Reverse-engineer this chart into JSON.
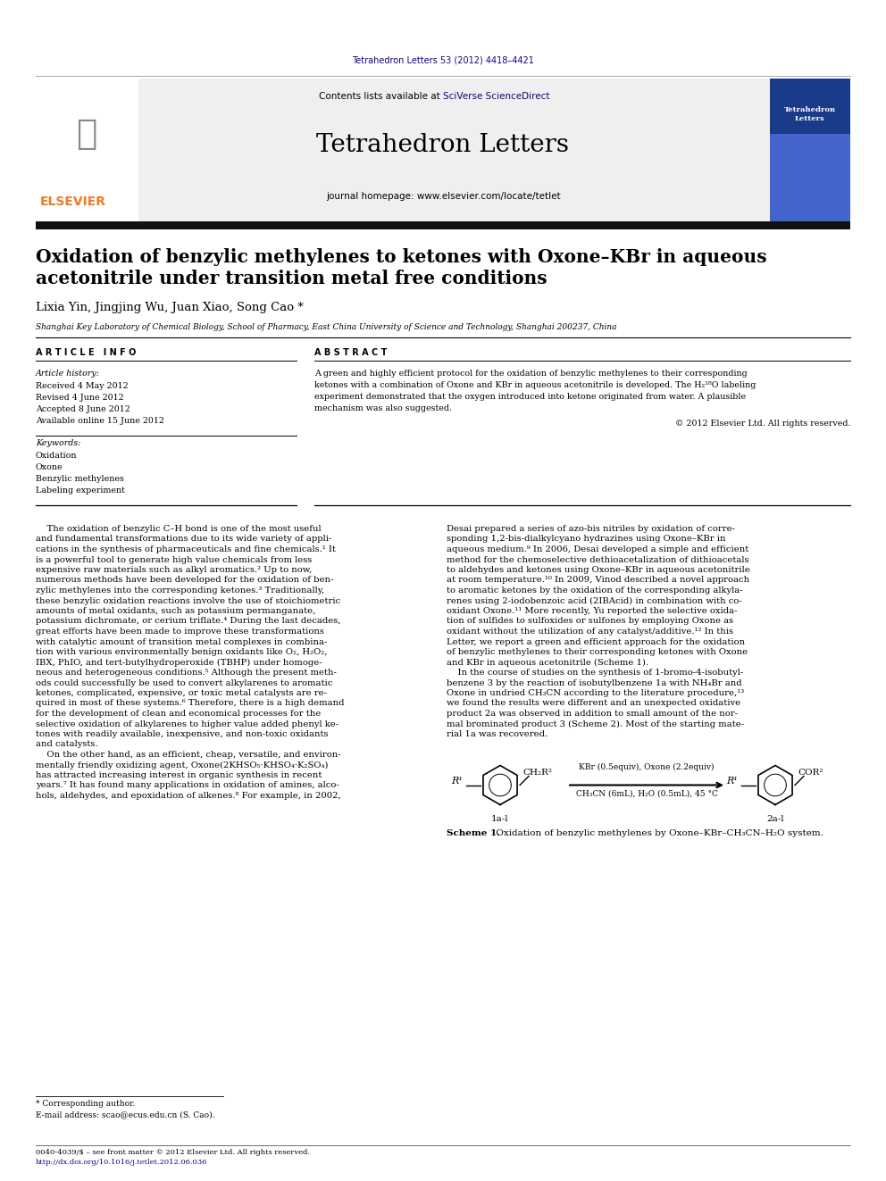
{
  "page_width": 9.92,
  "page_height": 13.23,
  "dpi": 100,
  "background_color": "#ffffff",
  "top_citation": "Tetrahedron Letters 53 (2012) 4418–4421",
  "top_citation_color": "#1a0080",
  "journal_name": "Tetrahedron Letters",
  "contents_text": "Contents lists available at ",
  "sciverse_text": "SciVerse ScienceDirect",
  "journal_homepage": "journal homepage: www.elsevier.com/locate/tetlet",
  "article_title_line1": "Oxidation of benzylic methylenes to ketones with Oxone–KBr in aqueous",
  "article_title_line2": "acetonitrile under transition metal free conditions",
  "authors": "Lixia Yin, Jingjing Wu, Juan Xiao, Song Cao",
  "affiliation": "Shanghai Key Laboratory of Chemical Biology, School of Pharmacy, East China University of Science and Technology, Shanghai 200237, China",
  "article_info_header": "A R T I C L E   I N F O",
  "abstract_header": "A B S T R A C T",
  "article_history_label": "Article history:",
  "received": "Received 4 May 2012",
  "revised": "Revised 4 June 2012",
  "accepted": "Accepted 8 June 2012",
  "available": "Available online 15 June 2012",
  "keywords_label": "Keywords:",
  "keywords": [
    "Oxidation",
    "Oxone",
    "Benzylic methylenes",
    "Labeling experiment"
  ],
  "abstract_lines": [
    "A green and highly efficient protocol for the oxidation of benzylic methylenes to their corresponding",
    "ketones with a combination of Oxone and KBr in aqueous acetonitrile is developed. The H₂¹⁸O labeling",
    "experiment demonstrated that the oxygen introduced into ketone originated from water. A plausible",
    "mechanism was also suggested."
  ],
  "copyright": "© 2012 Elsevier Ltd. All rights reserved.",
  "body_col1_lines": [
    "    The oxidation of benzylic C–H bond is one of the most useful",
    "and fundamental transformations due to its wide variety of appli-",
    "cations in the synthesis of pharmaceuticals and fine chemicals.¹ It",
    "is a powerful tool to generate high value chemicals from less",
    "expensive raw materials such as alkyl aromatics.² Up to now,",
    "numerous methods have been developed for the oxidation of ben-",
    "zylic methylenes into the corresponding ketones.³ Traditionally,",
    "these benzylic oxidation reactions involve the use of stoichiometric",
    "amounts of metal oxidants, such as potassium permanganate,",
    "potassium dichromate, or cerium triflate.⁴ During the last decades,",
    "great efforts have been made to improve these transformations",
    "with catalytic amount of transition metal complexes in combina-",
    "tion with various environmentally benign oxidants like O₂, H₂O₂,",
    "IBX, PhIO, and tert-butylhydroperoxide (TBHP) under homoge-",
    "neous and heterogeneous conditions.⁵ Although the present meth-",
    "ods could successfully be used to convert alkylarenes to aromatic",
    "ketones, complicated, expensive, or toxic metal catalysts are re-",
    "quired in most of these systems.⁶ Therefore, there is a high demand",
    "for the development of clean and economical processes for the",
    "selective oxidation of alkylarenes to higher value added phenyl ke-",
    "tones with readily available, inexpensive, and non-toxic oxidants",
    "and catalysts.",
    "    On the other hand, as an efficient, cheap, versatile, and environ-",
    "mentally friendly oxidizing agent, Oxone(2KHSO₅·KHSO₄·K₂SO₄)",
    "has attracted increasing interest in organic synthesis in recent",
    "years.⁷ It has found many applications in oxidation of amines, alco-",
    "hols, aldehydes, and epoxidation of alkenes.⁸ For example, in 2002,"
  ],
  "body_col2_lines": [
    "Desai prepared a series of azo-bis nitriles by oxidation of corre-",
    "sponding 1,2-bis-dialkylcyano hydrazines using Oxone–KBr in",
    "aqueous medium.⁹ In 2006, Desai developed a simple and efficient",
    "method for the chemoselective dethioacetalization of dithioacetals",
    "to aldehydes and ketones using Oxone–KBr in aqueous acetonitrile",
    "at room temperature.¹⁰ In 2009, Vinod described a novel approach",
    "to aromatic ketones by the oxidation of the corresponding alkyla-",
    "renes using 2-iodobenzoic acid (2IBAcid) in combination with co-",
    "oxidant Oxone.¹¹ More recently, Yu reported the selective oxida-",
    "tion of sulfides to sulfoxides or sulfones by employing Oxone as",
    "oxidant without the utilization of any catalyst/additive.¹² In this",
    "Letter, we report a green and efficient approach for the oxidation",
    "of benzylic methylenes to their corresponding ketones with Oxone",
    "and KBr in aqueous acetonitrile (Scheme 1).",
    "    In the course of studies on the synthesis of 1-bromo-4-isobutyl-",
    "benzene 3 by the reaction of isobutylbenzene 1a with NH₄Br and",
    "Oxone in undried CH₃CN according to the literature procedure,¹³",
    "we found the results were different and an unexpected oxidative",
    "product 2a was observed in addition to small amount of the nor-",
    "mal brominated product 3 (Scheme 2). Most of the starting mate-",
    "rial 1a was recovered."
  ],
  "footnote_star": "* Corresponding author.",
  "footnote_email": "E-mail address: scao@ecus.edu.cn (S. Cao).",
  "footer_line1": "0040-4039/$ – see front matter © 2012 Elsevier Ltd. All rights reserved.",
  "footer_line2": "http://dx.doi.org/10.1016/j.tetlet.2012.06.036",
  "scheme1_above_arrow1": "KBr (0.5equiv), Oxone (2.2equiv)",
  "scheme1_above_arrow2": "CH₃CN (6mL), H₂O (0.5mL), 45 °C",
  "scheme1_label_bold": "Scheme 1.",
  "scheme1_label_rest": " Oxidation of benzylic methylenes by Oxone–KBr–CH₃CN–H₂O system.",
  "scheme1_reactant_sub": "CH₂R²",
  "scheme1_reactant_label": "1a-l",
  "scheme1_product_sub": "COR²",
  "scheme1_product_label": "2a-l",
  "link_color": "#1a0080",
  "header_bar_color": "#111111",
  "elsevier_orange": "#f47920",
  "gray_bg": "#efefef"
}
